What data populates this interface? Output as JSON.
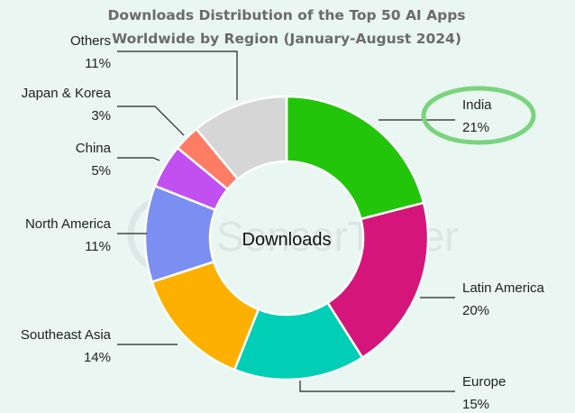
{
  "chart_data": {
    "type": "pie",
    "title_lines": [
      "Downloads Distribution of the Top 50 AI Apps",
      "Worldwide by Region (January-August 2024)"
    ],
    "center_label": "Downloads",
    "watermark": "SensorTower",
    "slices": [
      {
        "label": "India",
        "value": 21,
        "value_label": "21%",
        "color": "#22c50a"
      },
      {
        "label": "Latin America",
        "value": 20,
        "value_label": "20%",
        "color": "#d4167a"
      },
      {
        "label": "Europe",
        "value": 15,
        "value_label": "15%",
        "color": "#00cfb5"
      },
      {
        "label": "Southeast Asia",
        "value": 14,
        "value_label": "14%",
        "color": "#fdb000"
      },
      {
        "label": "North America",
        "value": 11,
        "value_label": "11%",
        "color": "#7b8ef2"
      },
      {
        "label": "China",
        "value": 5,
        "value_label": "5%",
        "color": "#c24ff0"
      },
      {
        "label": "Japan & Korea",
        "value": 3,
        "value_label": "3%",
        "color": "#fd7c64"
      },
      {
        "label": "Others",
        "value": 11,
        "value_label": "11%",
        "color": "#d6d6d6"
      }
    ],
    "highlight": {
      "label": "India",
      "color": "#7ad37d"
    }
  }
}
